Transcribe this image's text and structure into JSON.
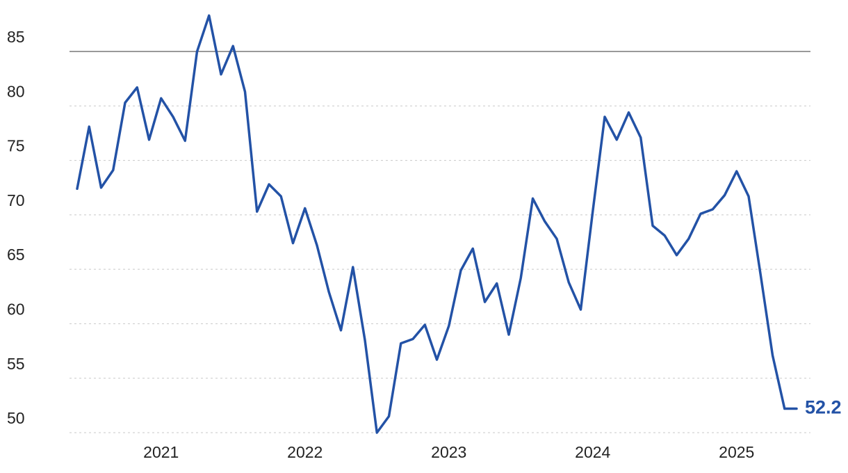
{
  "chart_data": {
    "type": "line",
    "categories": [
      null,
      null,
      null,
      null,
      null,
      null,
      null,
      "2021",
      null,
      null,
      null,
      null,
      null,
      null,
      null,
      null,
      null,
      null,
      null,
      "2022",
      null,
      null,
      null,
      null,
      null,
      null,
      null,
      null,
      null,
      null,
      null,
      "2023",
      null,
      null,
      null,
      null,
      null,
      null,
      null,
      null,
      null,
      null,
      null,
      "2024",
      null,
      null,
      null,
      null,
      null,
      null,
      null,
      null,
      null,
      null,
      null,
      "2025",
      null,
      null,
      null,
      null,
      null
    ],
    "values": [
      72.4,
      78.1,
      72.5,
      74.1,
      80.3,
      81.7,
      76.9,
      80.7,
      79.0,
      76.8,
      85.0,
      88.3,
      82.9,
      85.5,
      81.3,
      70.3,
      72.8,
      71.7,
      67.4,
      70.6,
      67.2,
      62.9,
      59.4,
      65.2,
      58.5,
      50.0,
      51.5,
      58.2,
      58.6,
      59.9,
      56.7,
      59.8,
      64.9,
      66.9,
      62.0,
      63.7,
      59.0,
      64.2,
      71.5,
      69.4,
      67.8,
      63.8,
      61.3,
      70.3,
      79.0,
      76.9,
      79.4,
      77.1,
      69.0,
      68.1,
      66.3,
      67.8,
      70.1,
      70.5,
      71.8,
      74.0,
      71.7,
      64.5,
      57.1,
      52.2,
      52.2
    ],
    "color": "#2352a6",
    "ylim": [
      50,
      89.6
    ],
    "yticks": [
      50,
      55,
      60,
      65,
      70,
      75,
      80,
      85
    ],
    "grid": true
  }
}
